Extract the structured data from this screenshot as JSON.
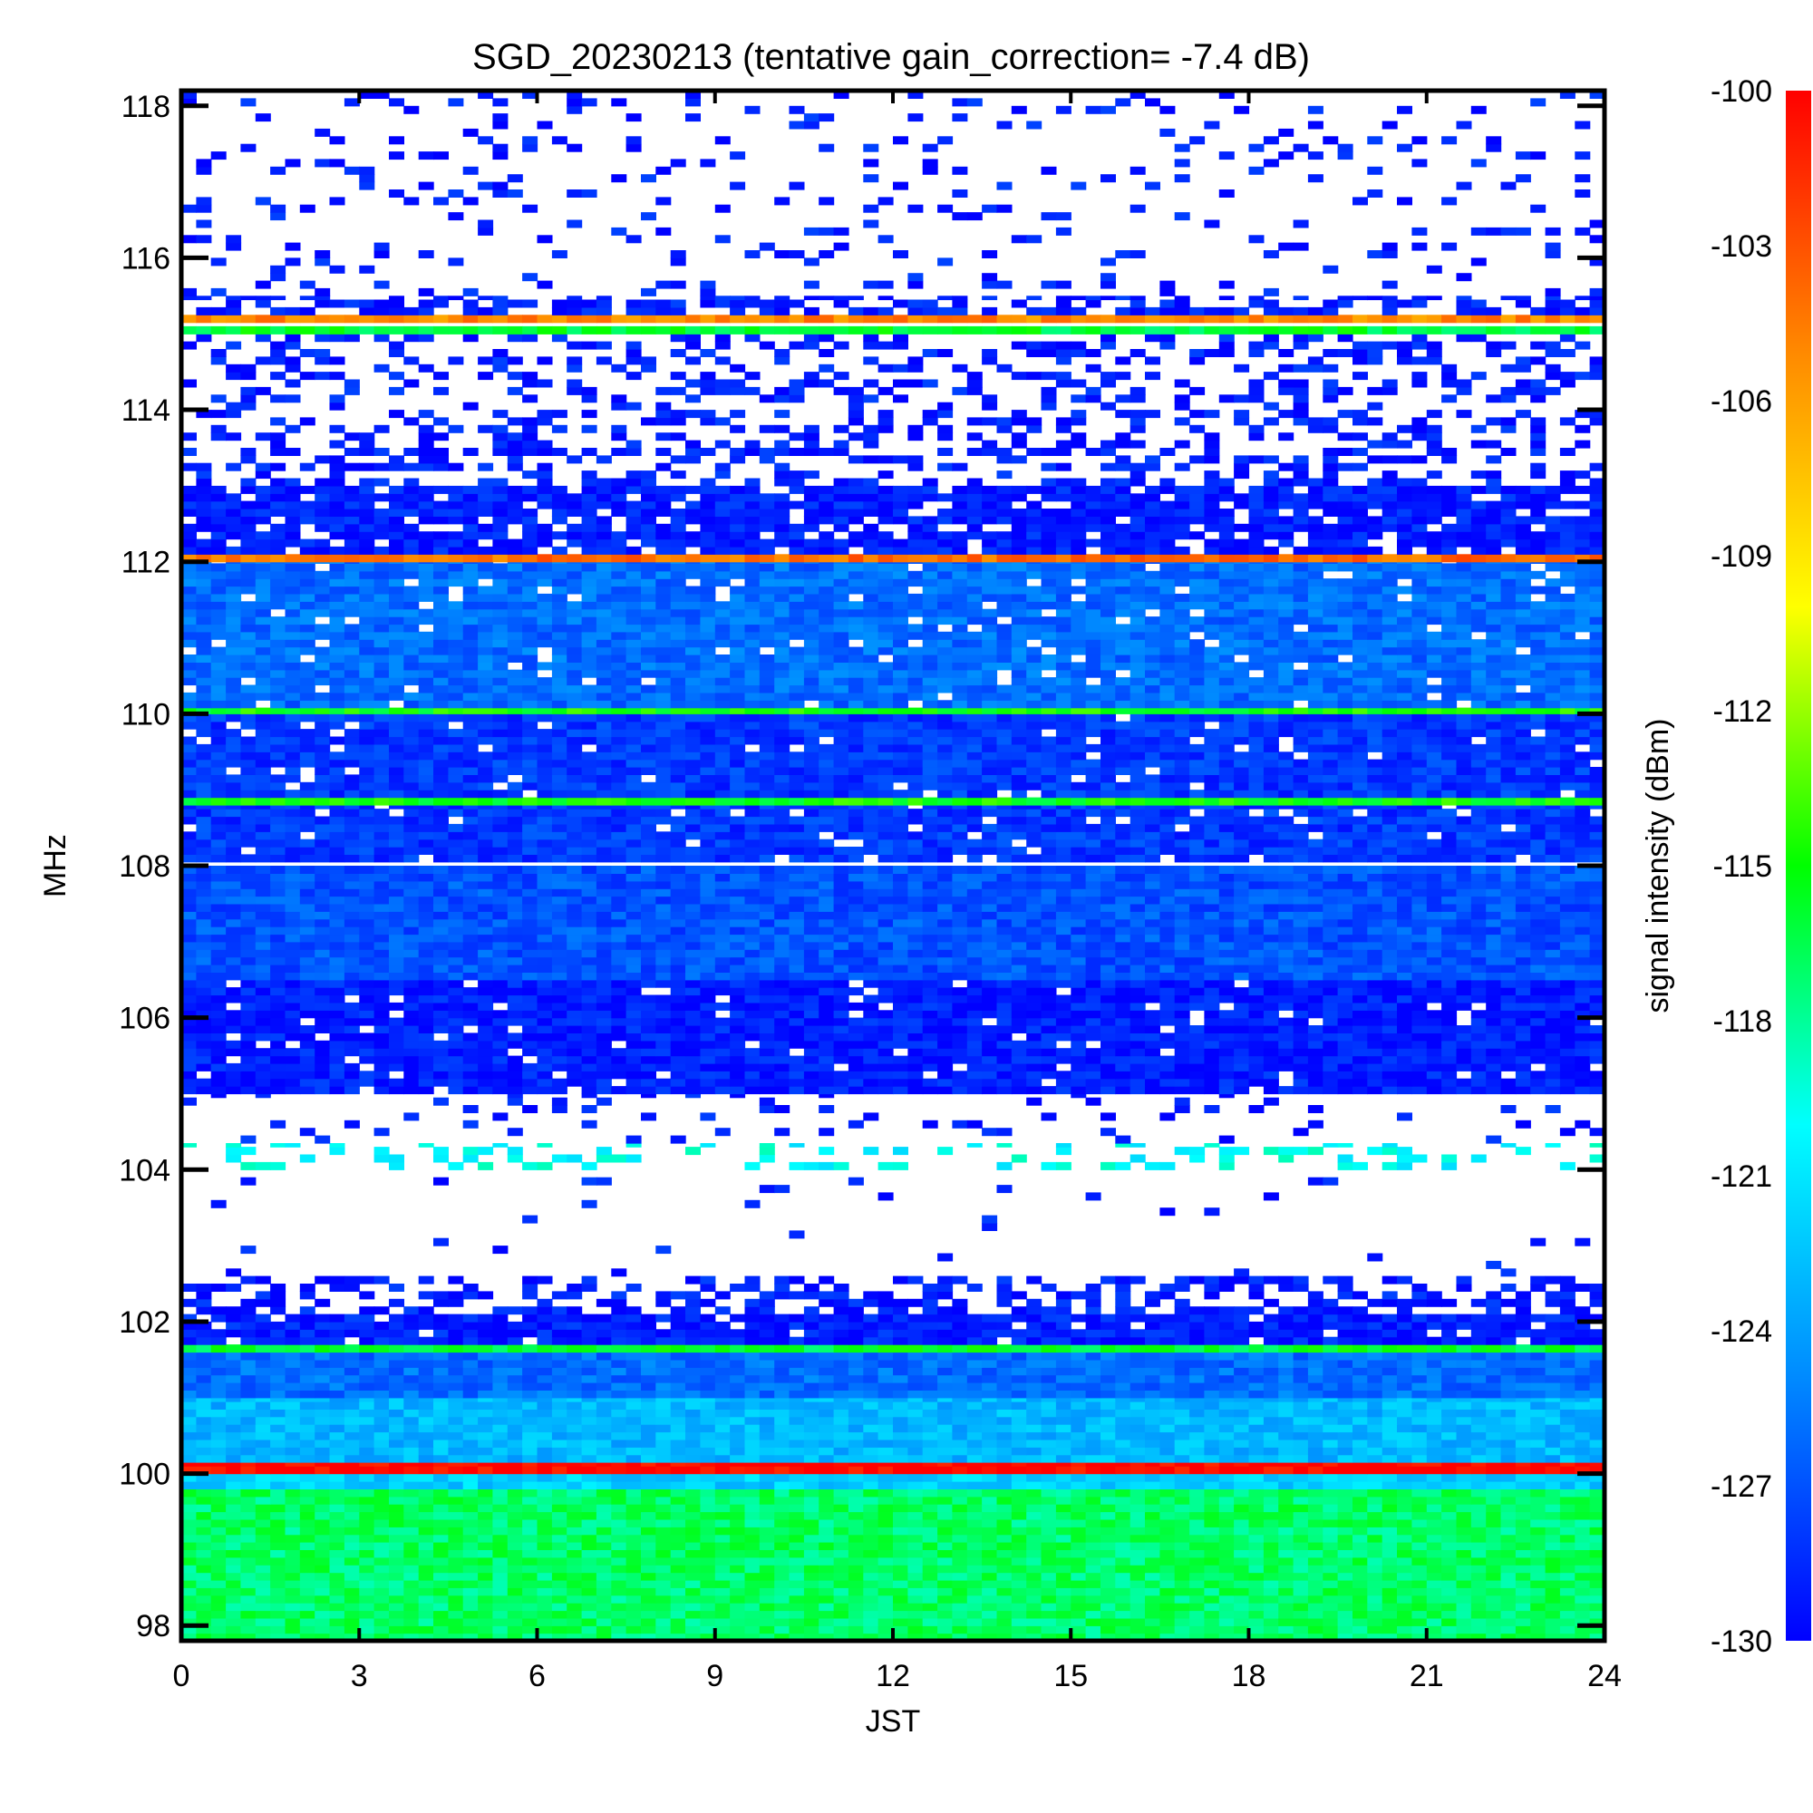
{
  "chart_data": {
    "type": "heatmap",
    "title": "SGD_20230213 (tentative gain_correction= -7.4 dB)",
    "xlabel": "JST",
    "ylabel": "MHz",
    "xlim": [
      0,
      24
    ],
    "ylim": [
      97.8,
      118.2
    ],
    "x_ticks": [
      0,
      3,
      6,
      9,
      12,
      15,
      18,
      21,
      24
    ],
    "y_ticks": [
      98,
      100,
      102,
      104,
      106,
      108,
      110,
      112,
      114,
      116,
      118
    ],
    "colorbar": {
      "label": "signal intensity (dBm)",
      "range": [
        -130,
        -100
      ],
      "ticks": [
        -100,
        -103,
        -106,
        -109,
        -112,
        -115,
        -118,
        -121,
        -124,
        -127,
        -130
      ],
      "colors": [
        "#0000ff",
        "#0088ff",
        "#00ffff",
        "#00ff00",
        "#ffff00",
        "#ff8800",
        "#ff0000"
      ]
    },
    "bands": [
      {
        "f0": 97.8,
        "f1": 99.8,
        "level": -117,
        "density": 1.0
      },
      {
        "f0": 99.8,
        "f1": 100.0,
        "level": -122,
        "density": 1.0
      },
      {
        "f0": 100.0,
        "f1": 100.15,
        "level": -100,
        "density": 1.0
      },
      {
        "f0": 100.15,
        "f1": 101.0,
        "level": -123,
        "density": 1.0
      },
      {
        "f0": 101.0,
        "f1": 101.6,
        "level": -126,
        "density": 1.0
      },
      {
        "f0": 101.6,
        "f1": 101.7,
        "level": -116,
        "density": 1.0
      },
      {
        "f0": 101.7,
        "f1": 102.1,
        "level": -129,
        "density": 0.95
      },
      {
        "f0": 102.1,
        "f1": 102.6,
        "level": -129,
        "density": 0.5
      },
      {
        "f0": 102.6,
        "f1": 104.0,
        "level": -129,
        "density": 0.02
      },
      {
        "f0": 104.0,
        "f1": 104.35,
        "level": -120,
        "density": 0.25
      },
      {
        "f0": 104.35,
        "f1": 105.0,
        "level": -129,
        "density": 0.1
      },
      {
        "f0": 105.0,
        "f1": 106.5,
        "level": -129,
        "density": 0.95
      },
      {
        "f0": 106.5,
        "f1": 108.0,
        "level": -127,
        "density": 1.0
      },
      {
        "f0": 108.0,
        "f1": 108.05,
        "level": -140,
        "density": 0.0
      },
      {
        "f0": 108.05,
        "f1": 108.8,
        "level": -128,
        "density": 0.95
      },
      {
        "f0": 108.8,
        "f1": 108.9,
        "level": -115,
        "density": 1.0
      },
      {
        "f0": 108.9,
        "f1": 110.0,
        "level": -128,
        "density": 0.95
      },
      {
        "f0": 110.0,
        "f1": 110.08,
        "level": -115,
        "density": 1.0
      },
      {
        "f0": 110.08,
        "f1": 112.0,
        "level": -126,
        "density": 0.95
      },
      {
        "f0": 112.0,
        "f1": 112.1,
        "level": -104,
        "density": 1.0
      },
      {
        "f0": 112.1,
        "f1": 113.0,
        "level": -129,
        "density": 0.85
      },
      {
        "f0": 113.0,
        "f1": 115.0,
        "level": -129,
        "density": 0.35
      },
      {
        "f0": 115.0,
        "f1": 115.1,
        "level": -116,
        "density": 1.0
      },
      {
        "f0": 115.15,
        "f1": 115.25,
        "level": -105,
        "density": 1.0
      },
      {
        "f0": 115.25,
        "f1": 115.5,
        "level": -129,
        "density": 0.6
      },
      {
        "f0": 115.5,
        "f1": 118.2,
        "level": -129,
        "density": 0.12
      }
    ]
  }
}
